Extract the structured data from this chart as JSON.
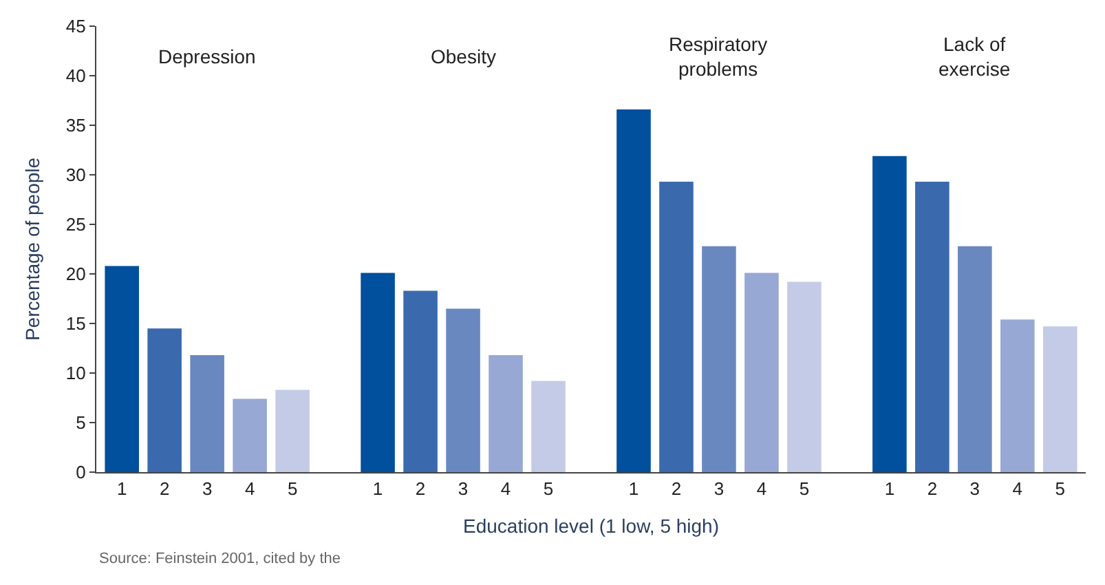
{
  "chart_data": {
    "type": "bar",
    "xlabel": "Education level (1 low, 5 high)",
    "ylabel": "Percentage of people",
    "categories": [
      "1",
      "2",
      "3",
      "4",
      "5",
      null,
      "1",
      "2",
      "3",
      "4",
      "5",
      null,
      "1",
      "2",
      "3",
      "4",
      "5",
      null,
      "1",
      "2",
      "3",
      "4",
      "5"
    ],
    "values": [
      20.8,
      14.5,
      11.8,
      7.4,
      8.3,
      null,
      20.1,
      18.3,
      16.5,
      11.8,
      9.2,
      null,
      36.6,
      29.3,
      22.8,
      20.1,
      19.2,
      null,
      31.9,
      29.3,
      22.8,
      15.4,
      14.7
    ],
    "colors": [
      "#00509e",
      "#3a6aad",
      "#6a88c0",
      "#97a8d4",
      "#c3cbe6",
      "#ffffff",
      "#00509e",
      "#3a6aad",
      "#6a88c0",
      "#97a8d4",
      "#c3cbe6",
      "#ffffff",
      "#00509e",
      "#3a6aad",
      "#6a88c0",
      "#97a8d4",
      "#c3cbe6",
      "#ffffff",
      "#00509e",
      "#3a6aad",
      "#6a88c0",
      "#97a8d4",
      "#c3cbe6"
    ],
    "ylim": [
      0,
      45
    ],
    "yticks": [
      0,
      5,
      10,
      15,
      20,
      25,
      30,
      35,
      40,
      45
    ],
    "annotations": [
      "Depression",
      "Obesity",
      "Respiratory\nproblems",
      "Lack of\nexercise",
      "Source: Feinstein 2001, cited by the"
    ]
  }
}
